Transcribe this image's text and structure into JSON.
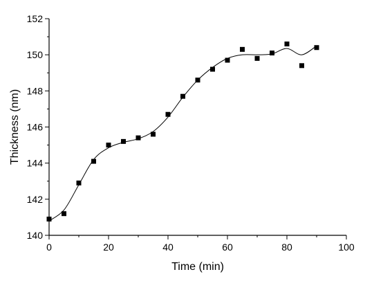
{
  "chart_data": {
    "type": "scatter",
    "title": "",
    "xlabel": "Time (min)",
    "ylabel": "Thickness (nm)",
    "xlim": [
      0,
      100
    ],
    "ylim": [
      140,
      152
    ],
    "x_ticks": [
      0,
      20,
      40,
      60,
      80,
      100
    ],
    "y_ticks": [
      140,
      142,
      144,
      146,
      148,
      150,
      152
    ],
    "grid": false,
    "series": [
      {
        "marker": "square",
        "color": "#000000",
        "points": [
          {
            "x": 0,
            "y": 140.9
          },
          {
            "x": 5,
            "y": 141.2
          },
          {
            "x": 10,
            "y": 142.9
          },
          {
            "x": 15,
            "y": 144.1
          },
          {
            "x": 20,
            "y": 145.0
          },
          {
            "x": 25,
            "y": 145.2
          },
          {
            "x": 30,
            "y": 145.4
          },
          {
            "x": 35,
            "y": 145.6
          },
          {
            "x": 40,
            "y": 146.7
          },
          {
            "x": 45,
            "y": 147.7
          },
          {
            "x": 50,
            "y": 148.6
          },
          {
            "x": 55,
            "y": 149.2
          },
          {
            "x": 60,
            "y": 149.7
          },
          {
            "x": 65,
            "y": 150.3
          },
          {
            "x": 70,
            "y": 149.8
          },
          {
            "x": 75,
            "y": 150.1
          },
          {
            "x": 80,
            "y": 150.6
          },
          {
            "x": 85,
            "y": 149.4
          },
          {
            "x": 90,
            "y": 150.4
          }
        ]
      }
    ],
    "fit_curve": {
      "color": "#000000",
      "points": [
        {
          "x": 0,
          "y": 140.8
        },
        {
          "x": 5,
          "y": 141.4
        },
        {
          "x": 10,
          "y": 142.8
        },
        {
          "x": 15,
          "y": 144.2
        },
        {
          "x": 20,
          "y": 144.85
        },
        {
          "x": 25,
          "y": 145.15
        },
        {
          "x": 30,
          "y": 145.35
        },
        {
          "x": 35,
          "y": 145.75
        },
        {
          "x": 40,
          "y": 146.55
        },
        {
          "x": 45,
          "y": 147.65
        },
        {
          "x": 50,
          "y": 148.6
        },
        {
          "x": 55,
          "y": 149.3
        },
        {
          "x": 60,
          "y": 149.8
        },
        {
          "x": 65,
          "y": 150.0
        },
        {
          "x": 70,
          "y": 150.0
        },
        {
          "x": 75,
          "y": 150.05
        },
        {
          "x": 80,
          "y": 150.35
        },
        {
          "x": 85,
          "y": 150.0
        },
        {
          "x": 90,
          "y": 150.5
        }
      ]
    }
  }
}
